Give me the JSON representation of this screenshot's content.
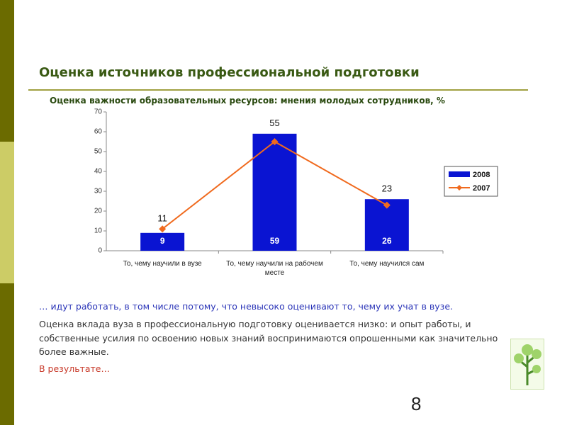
{
  "title": "Оценка источников профессиональной подготовки",
  "chart_data": {
    "type": "bar",
    "title": "Оценка важности образовательных ресурсов: мнения молодых сотрудников, %",
    "categories": [
      "То, чему научили в вузе",
      "То, чему научили на рабочем месте",
      "То, чему научился сам"
    ],
    "series": [
      {
        "name": "2008",
        "type": "bar",
        "color": "#0a14d2",
        "values": [
          9,
          59,
          26
        ]
      },
      {
        "name": "2007",
        "type": "line",
        "color": "#f06a1e",
        "values": [
          11,
          55,
          23
        ]
      }
    ],
    "ylim": [
      0,
      70
    ],
    "yticks": [
      0,
      10,
      20,
      30,
      40,
      50,
      60,
      70
    ],
    "grid": false,
    "legend": "right"
  },
  "paragraphs": [
    "… идут работать, в том числе потому, что невысоко оценивают то, чему их учат в вузе.",
    "Оценка вклада вуза в профессиональную подготовку оценивается низко: и опыт работы, и собственные усилия по освоению новых знаний воспринимаются опрошенными как значительно более важные.",
    "В результате…"
  ],
  "page_number": "8"
}
